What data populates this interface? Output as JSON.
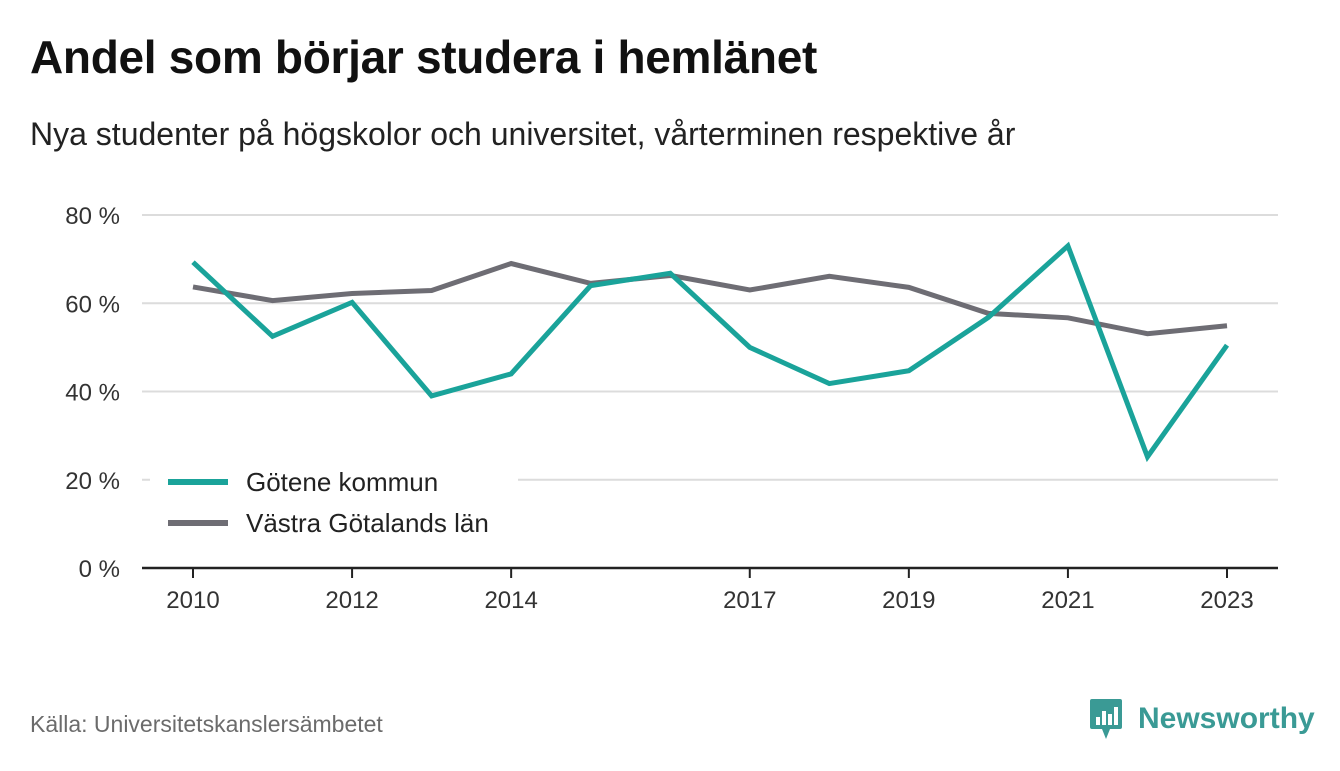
{
  "title": "Andel som börjar studera i hemlänet",
  "subtitle": "Nya studenter på högskolor och universitet, vårterminen respektive år",
  "source": "Källa: Universitetskanslersämbetet",
  "brand": {
    "name": "Newsworthy",
    "icon": "newsworthy-logo-icon",
    "color": "#3a9a95"
  },
  "chart_data": {
    "type": "line",
    "x": [
      2010,
      2011,
      2012,
      2013,
      2014,
      2015,
      2016,
      2017,
      2018,
      2019,
      2020,
      2021,
      2022,
      2023
    ],
    "x_tick_labels": [
      "2010",
      "2012",
      "2014",
      "2017",
      "2019",
      "2021",
      "2023"
    ],
    "x_tick_values": [
      2010,
      2012,
      2014,
      2017,
      2019,
      2021,
      2023
    ],
    "y_ticks": [
      0,
      20,
      40,
      60,
      80
    ],
    "y_tick_labels": [
      "0 %",
      "20 %",
      "40 %",
      "60 %",
      "80 %"
    ],
    "ylim": [
      0,
      80
    ],
    "grid": true,
    "legend_position": "bottom-left",
    "series": [
      {
        "name": "Götene kommun",
        "color": "#1aa39a",
        "values": [
          69.3,
          52.5,
          60.2,
          39.0,
          44.0,
          64.0,
          66.8,
          50.0,
          41.8,
          44.7,
          56.8,
          73.0,
          25.2,
          50.5
        ]
      },
      {
        "name": "Västra Götalands län",
        "color": "#6e6d74",
        "values": [
          63.7,
          60.6,
          62.2,
          62.9,
          69.0,
          64.5,
          66.3,
          63.0,
          66.1,
          63.6,
          57.7,
          56.7,
          53.1,
          54.9
        ]
      }
    ]
  }
}
